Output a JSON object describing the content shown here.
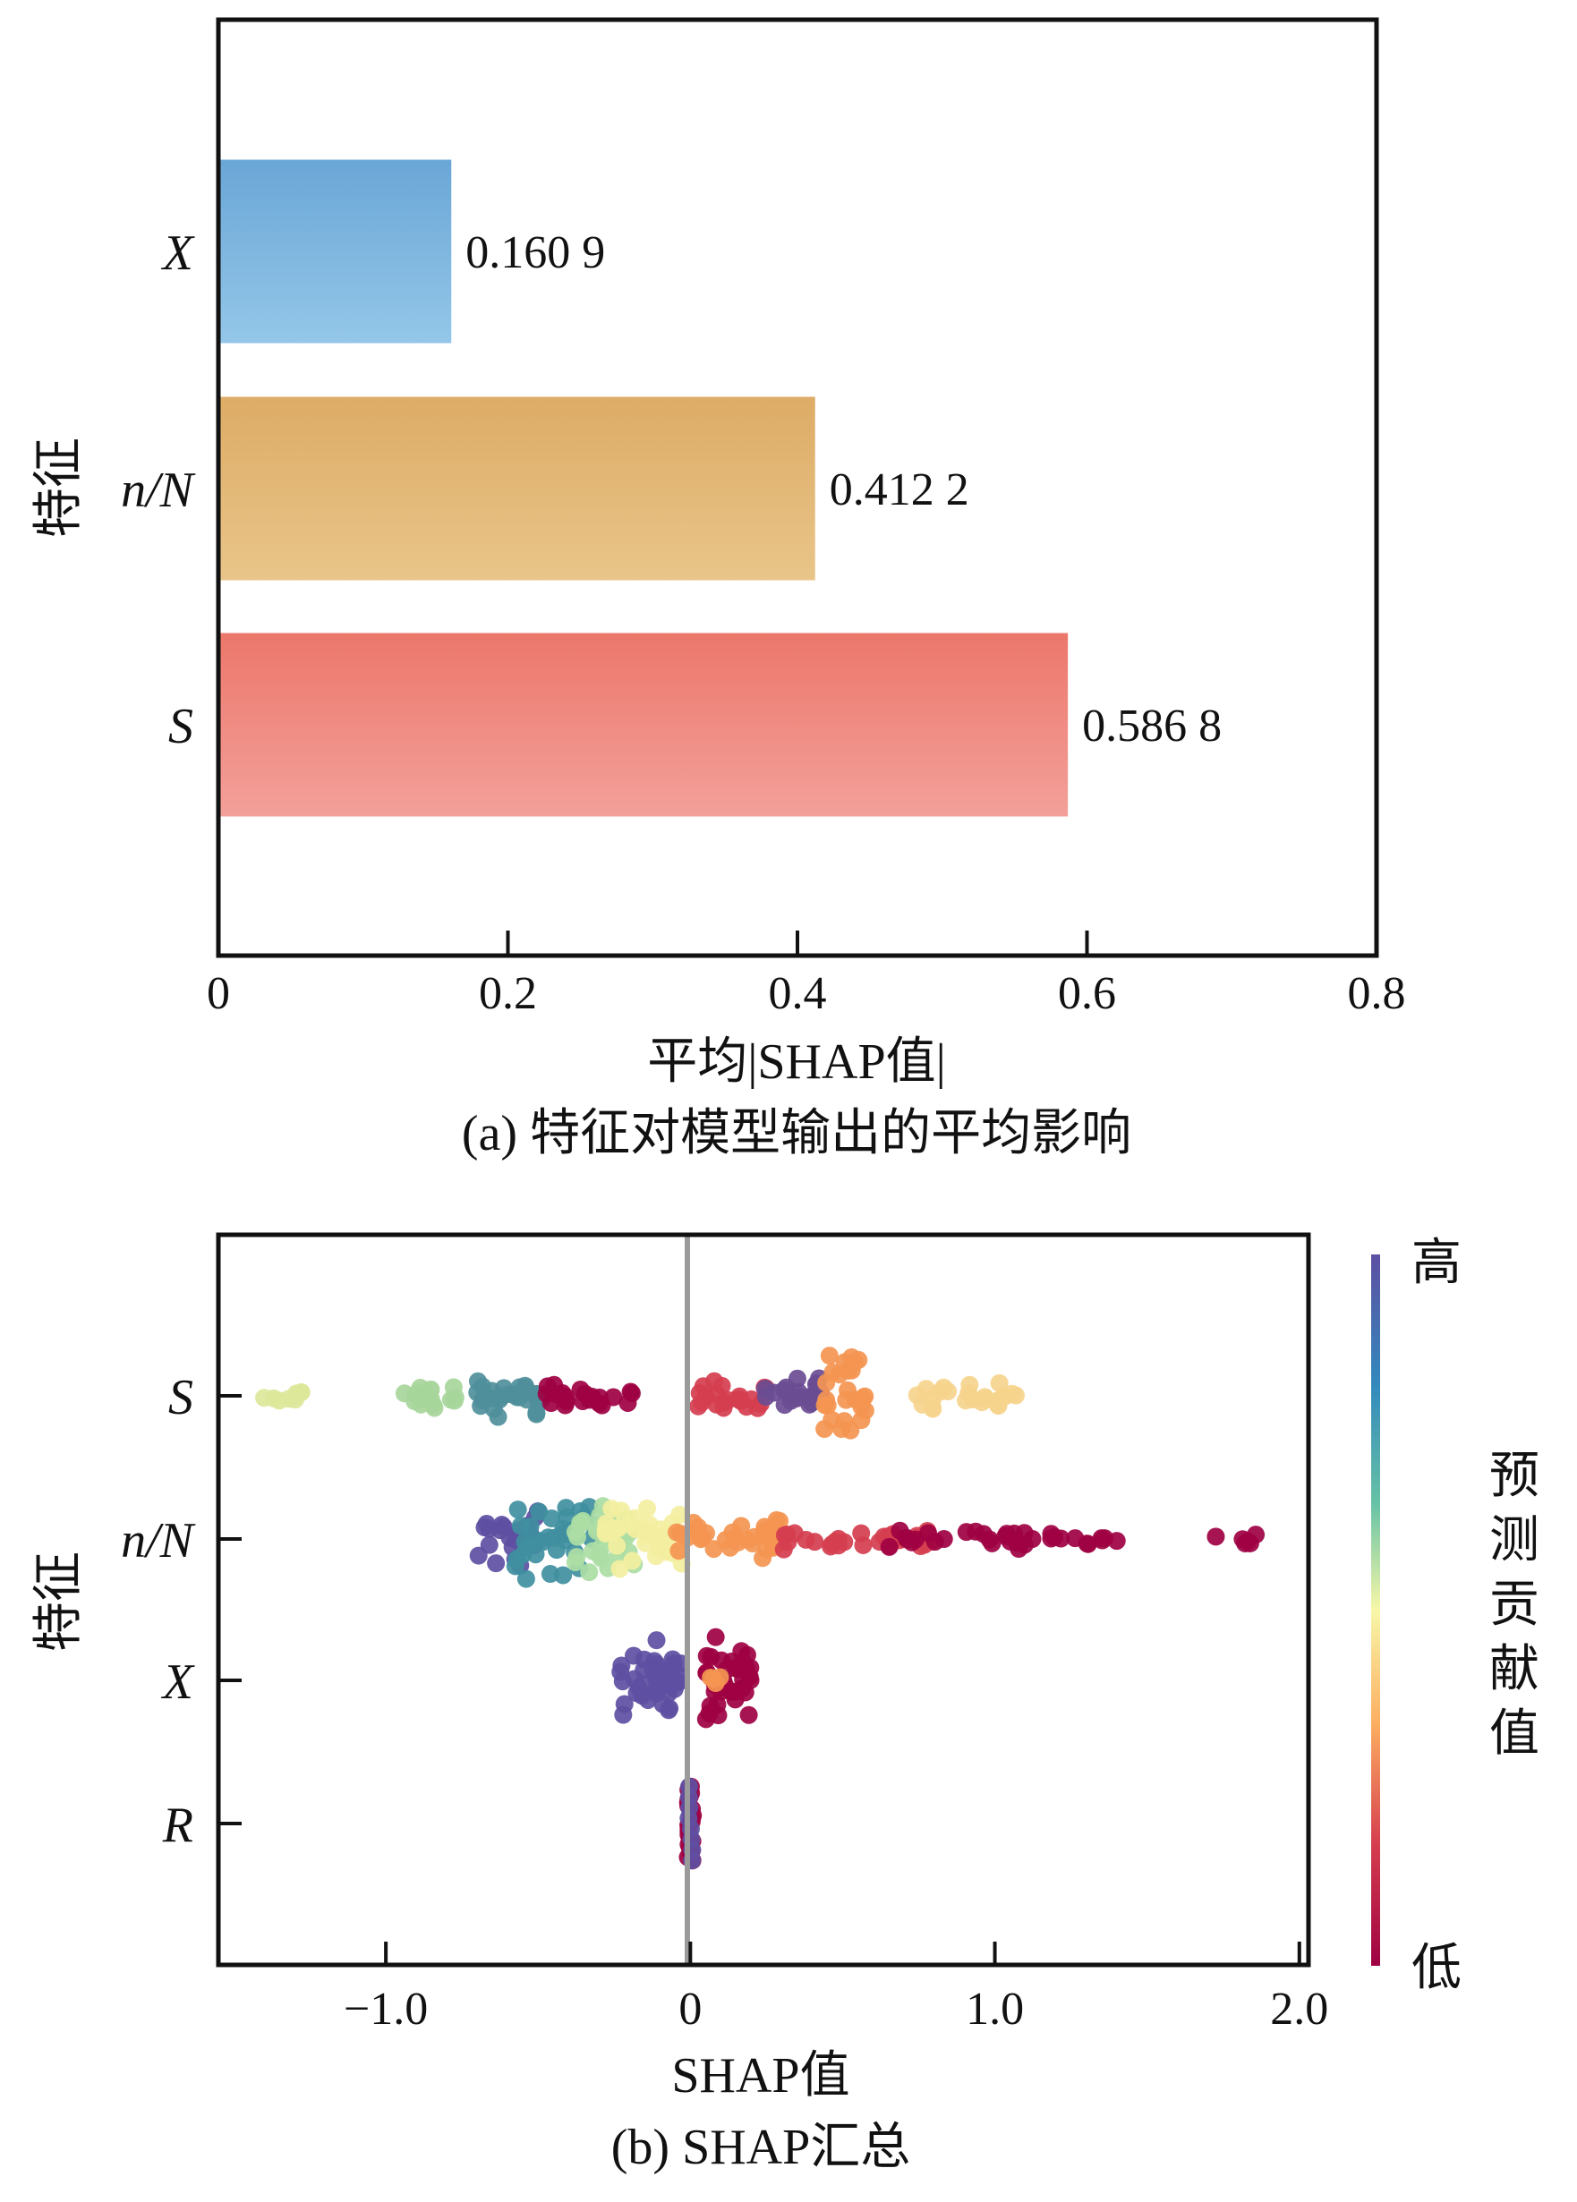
{
  "chart_data": [
    {
      "type": "bar",
      "orientation": "horizontal",
      "categories": [
        "X",
        "n/N",
        "S"
      ],
      "values": [
        0.1609,
        0.4122,
        0.5868
      ],
      "value_labels": [
        "0.160 9",
        "0.412 2",
        "0.586 8"
      ],
      "colors": [
        "#74acd9",
        "#e0b36e",
        "#ee7d72"
      ],
      "xlabel": "平均|SHAP值|",
      "ylabel": "特征",
      "xlim": [
        0,
        0.8
      ],
      "xticks": [
        0,
        0.2,
        0.4,
        0.6,
        0.8
      ],
      "xtick_labels": [
        "0",
        "0.2",
        "0.4",
        "0.6",
        "0.8"
      ],
      "caption": "(a) 特征对模型输出的平均影响"
    },
    {
      "type": "scatter",
      "subtype": "beeswarm",
      "categories": [
        "S",
        "n/N",
        "X",
        "R"
      ],
      "xlabel": "SHAP值",
      "ylabel": "特征",
      "xlim": [
        -1.55,
        2.03
      ],
      "xticks": [
        -1.0,
        0,
        1.0,
        2.0
      ],
      "xtick_labels": [
        "−1.0",
        "0",
        "1.0",
        "2.0"
      ],
      "colorbar": {
        "label": "预测贡献值",
        "high": "高",
        "low": "低"
      },
      "caption": "(b) SHAP汇总",
      "series": [
        {
          "feature": "S",
          "clusters": [
            {
              "x": [
                -1.4,
                -1.25
              ],
              "density": 8,
              "spread": 0.14,
              "color": "#dde79a"
            },
            {
              "x": [
                -0.95,
                -0.76
              ],
              "density": 18,
              "spread": 0.22,
              "color": "#a7d69b"
            },
            {
              "x": [
                -0.7,
                -0.48
              ],
              "density": 30,
              "spread": 0.32,
              "color": "#4f8f9b"
            },
            {
              "x": [
                -0.48,
                -0.18
              ],
              "density": 22,
              "spread": 0.18,
              "color": "#9e0142"
            },
            {
              "x": [
                0.0,
                0.25
              ],
              "density": 22,
              "spread": 0.22,
              "color": "#d53e4f"
            },
            {
              "x": [
                0.22,
                0.44
              ],
              "density": 22,
              "spread": 0.3,
              "color": "#6a4c93"
            },
            {
              "x": [
                0.44,
                0.58
              ],
              "density": 26,
              "spread": 0.7,
              "color": "#f49551"
            },
            {
              "x": [
                0.7,
                1.08
              ],
              "density": 24,
              "spread": 0.26,
              "color": "#f6d48c"
            }
          ]
        },
        {
          "feature": "n/N",
          "clusters": [
            {
              "x": [
                -0.7,
                -0.5
              ],
              "density": 26,
              "spread": 0.48,
              "color": "#5e4fa2"
            },
            {
              "x": [
                -0.58,
                -0.32
              ],
              "density": 34,
              "spread": 0.64,
              "color": "#3f8fa0"
            },
            {
              "x": [
                -0.38,
                -0.18
              ],
              "density": 30,
              "spread": 0.56,
              "color": "#abdda4"
            },
            {
              "x": [
                -0.28,
                -0.02
              ],
              "density": 34,
              "spread": 0.52,
              "color": "#f3efa0"
            },
            {
              "x": [
                -0.05,
                0.3
              ],
              "density": 32,
              "spread": 0.34,
              "color": "#f49551"
            },
            {
              "x": [
                0.3,
                0.8
              ],
              "density": 30,
              "spread": 0.18,
              "color": "#d53e4f"
            },
            {
              "x": [
                0.6,
                1.48
              ],
              "density": 34,
              "spread": 0.16,
              "color": "#9e0142"
            },
            {
              "x": [
                1.68,
                1.86
              ],
              "density": 6,
              "spread": 0.12,
              "color": "#9e0142"
            }
          ]
        },
        {
          "feature": "X",
          "clusters": [
            {
              "x": [
                -0.23,
                -0.03
              ],
              "density": 40,
              "spread": 0.7,
              "color": "#5e4fa2"
            },
            {
              "x": [
                0.05,
                0.2
              ],
              "density": 36,
              "spread": 0.7,
              "color": "#9e0142"
            },
            {
              "x": [
                0.06,
                0.12
              ],
              "density": 4,
              "spread": 0.1,
              "color": "#f49551"
            }
          ]
        },
        {
          "feature": "R",
          "clusters": [
            {
              "x": [
                -0.01,
                0.01
              ],
              "density": 24,
              "spread": 0.0,
              "color": "#9e0142"
            },
            {
              "x": [
                -0.01,
                0.01
              ],
              "density": 8,
              "spread": 0.0,
              "color": "#5e4fa2"
            }
          ]
        }
      ]
    }
  ]
}
